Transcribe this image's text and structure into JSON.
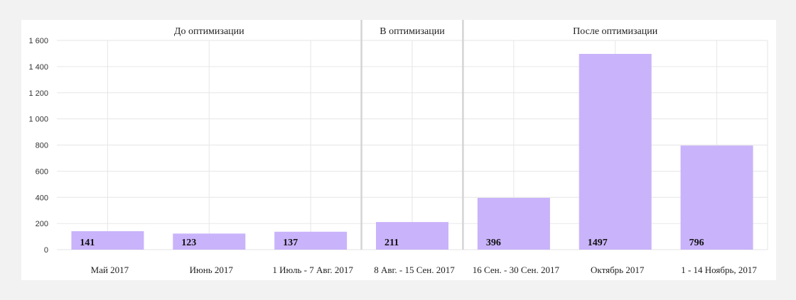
{
  "chart_data": {
    "type": "bar",
    "categories": [
      "Май 2017",
      "Июнь 2017",
      "1 Июль - 7 Авг. 2017",
      "8 Авг. - 15 Сен. 2017",
      "16 Сен. - 30 Сен. 2017",
      "Октябрь 2017",
      "1 - 14 Ноябрь, 2017"
    ],
    "values": [
      141,
      123,
      137,
      211,
      396,
      1497,
      796
    ],
    "data_labels": [
      "141",
      "123",
      "137",
      "211",
      "396",
      "1497",
      "796"
    ],
    "groups": [
      {
        "name": "До оптимизации",
        "categories": [
          0,
          1,
          2
        ]
      },
      {
        "name": "В оптимизации",
        "categories": [
          3
        ]
      },
      {
        "name": "После оптимизации",
        "categories": [
          4,
          5,
          6
        ]
      }
    ],
    "ylim": [
      0,
      1600
    ],
    "yticks": [
      0,
      200,
      400,
      600,
      800,
      1000,
      1200,
      1400,
      1600
    ],
    "ytick_labels": [
      "0",
      "200",
      "400",
      "600",
      "800",
      "1 000",
      "1 200",
      "1 400",
      "1 600"
    ],
    "grid": true,
    "bar_color": "#c9b3fa",
    "grid_color": "#e6e6e6",
    "separator_color": "#d4d4d4"
  }
}
